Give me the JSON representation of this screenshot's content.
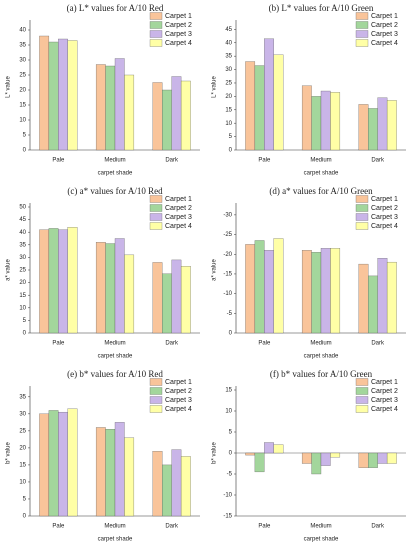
{
  "chart_data": [
    {
      "type": "bar",
      "title": "(a) L* values for A/10 Red",
      "xlabel": "carpet shade",
      "ylabel": "L* value",
      "categories": [
        "Pale",
        "Medium",
        "Dark"
      ],
      "series": [
        {
          "name": "Carpet 1",
          "color": "#f9c49a",
          "values": [
            38,
            28.5,
            22.5
          ]
        },
        {
          "name": "Carpet 2",
          "color": "#a3d69c",
          "values": [
            36,
            28,
            20
          ]
        },
        {
          "name": "Carpet 3",
          "color": "#c9b5e8",
          "values": [
            37,
            30.5,
            24.5
          ]
        },
        {
          "name": "Carpet 4",
          "color": "#ffffa6",
          "values": [
            36.5,
            25,
            23
          ]
        }
      ],
      "ylim": [
        0,
        42
      ],
      "yticks": [
        0,
        5,
        10,
        15,
        20,
        25,
        30,
        35,
        40
      ],
      "legend": "upper right"
    },
    {
      "type": "bar",
      "title": "(b) L* values for A/10 Green",
      "xlabel": "carpet shade",
      "ylabel": "L* value",
      "categories": [
        "Pale",
        "Medium",
        "Dark"
      ],
      "series": [
        {
          "name": "Carpet 1",
          "color": "#f9c49a",
          "values": [
            33,
            24,
            17
          ]
        },
        {
          "name": "Carpet 2",
          "color": "#a3d69c",
          "values": [
            31.5,
            20,
            15.5
          ]
        },
        {
          "name": "Carpet 3",
          "color": "#c9b5e8",
          "values": [
            41.5,
            22,
            19.5
          ]
        },
        {
          "name": "Carpet 4",
          "color": "#ffffa6",
          "values": [
            35.5,
            21.5,
            18.5
          ]
        }
      ],
      "ylim": [
        0,
        47
      ],
      "yticks": [
        0,
        5,
        10,
        15,
        20,
        25,
        30,
        35,
        40,
        45
      ],
      "legend": "upper right"
    },
    {
      "type": "bar",
      "title": "(c) a* values for A/10 Red",
      "xlabel": "carpet shade",
      "ylabel": "a* value",
      "categories": [
        "Pale",
        "Medium",
        "Dark"
      ],
      "series": [
        {
          "name": "Carpet 1",
          "color": "#f9c49a",
          "values": [
            41,
            36,
            28
          ]
        },
        {
          "name": "Carpet 2",
          "color": "#a3d69c",
          "values": [
            41.5,
            35.5,
            23.5
          ]
        },
        {
          "name": "Carpet 3",
          "color": "#c9b5e8",
          "values": [
            41,
            37.5,
            29
          ]
        },
        {
          "name": "Carpet 4",
          "color": "#ffffa6",
          "values": [
            42,
            31,
            26.5
          ]
        }
      ],
      "ylim": [
        0,
        50
      ],
      "yticks": [
        0,
        5,
        10,
        15,
        20,
        25,
        30,
        35,
        40,
        45,
        50
      ],
      "legend": "upper right"
    },
    {
      "type": "bar",
      "title": "(d) a* values for A/10 Green",
      "xlabel": "carpet shade",
      "ylabel": "a* value",
      "categories": [
        "Pale",
        "Medium",
        "Dark"
      ],
      "series": [
        {
          "name": "Carpet 1",
          "color": "#f9c49a",
          "values": [
            -22.5,
            -21,
            -17.5
          ]
        },
        {
          "name": "Carpet 2",
          "color": "#a3d69c",
          "values": [
            -23.5,
            -20.5,
            -14.5
          ]
        },
        {
          "name": "Carpet 3",
          "color": "#c9b5e8",
          "values": [
            -21,
            -21.5,
            -19
          ]
        },
        {
          "name": "Carpet 4",
          "color": "#ffffa6",
          "values": [
            -24,
            -21.5,
            -18
          ]
        }
      ],
      "ylim": [
        0,
        -32
      ],
      "yticks": [
        0,
        -5,
        -10,
        -15,
        -20,
        -25,
        -30
      ],
      "legend": "upper right"
    },
    {
      "type": "bar",
      "title": "(e) b* values for A/10 Red",
      "xlabel": "carpet shade",
      "ylabel": "b* value",
      "categories": [
        "Pale",
        "Medium",
        "Dark"
      ],
      "series": [
        {
          "name": "Carpet 1",
          "color": "#f9c49a",
          "values": [
            30,
            26,
            19
          ]
        },
        {
          "name": "Carpet 2",
          "color": "#a3d69c",
          "values": [
            31,
            25.5,
            15
          ]
        },
        {
          "name": "Carpet 3",
          "color": "#c9b5e8",
          "values": [
            30.5,
            27.5,
            19.5
          ]
        },
        {
          "name": "Carpet 4",
          "color": "#ffffa6",
          "values": [
            31.5,
            23,
            17.5
          ]
        }
      ],
      "ylim": [
        0,
        37
      ],
      "yticks": [
        0,
        5,
        10,
        15,
        20,
        25,
        30,
        35
      ],
      "legend": "upper right"
    },
    {
      "type": "bar",
      "title": "(f) b* values for A/10 Green",
      "xlabel": "carpet shade",
      "ylabel": "b* value",
      "categories": [
        "Pale",
        "Medium",
        "Dark"
      ],
      "series": [
        {
          "name": "Carpet 1",
          "color": "#f9c49a",
          "values": [
            -0.5,
            -2.5,
            -3.5
          ]
        },
        {
          "name": "Carpet 2",
          "color": "#a3d69c",
          "values": [
            -4.5,
            -5,
            -3.5
          ]
        },
        {
          "name": "Carpet 3",
          "color": "#c9b5e8",
          "values": [
            2.5,
            -3,
            -2.5
          ]
        },
        {
          "name": "Carpet 4",
          "color": "#ffffa6",
          "values": [
            2,
            -1,
            -2.5
          ]
        }
      ],
      "ylim": [
        -15,
        15
      ],
      "yticks": [
        -15,
        -10,
        -5,
        0,
        5,
        10,
        15
      ],
      "legend": "upper right"
    }
  ]
}
